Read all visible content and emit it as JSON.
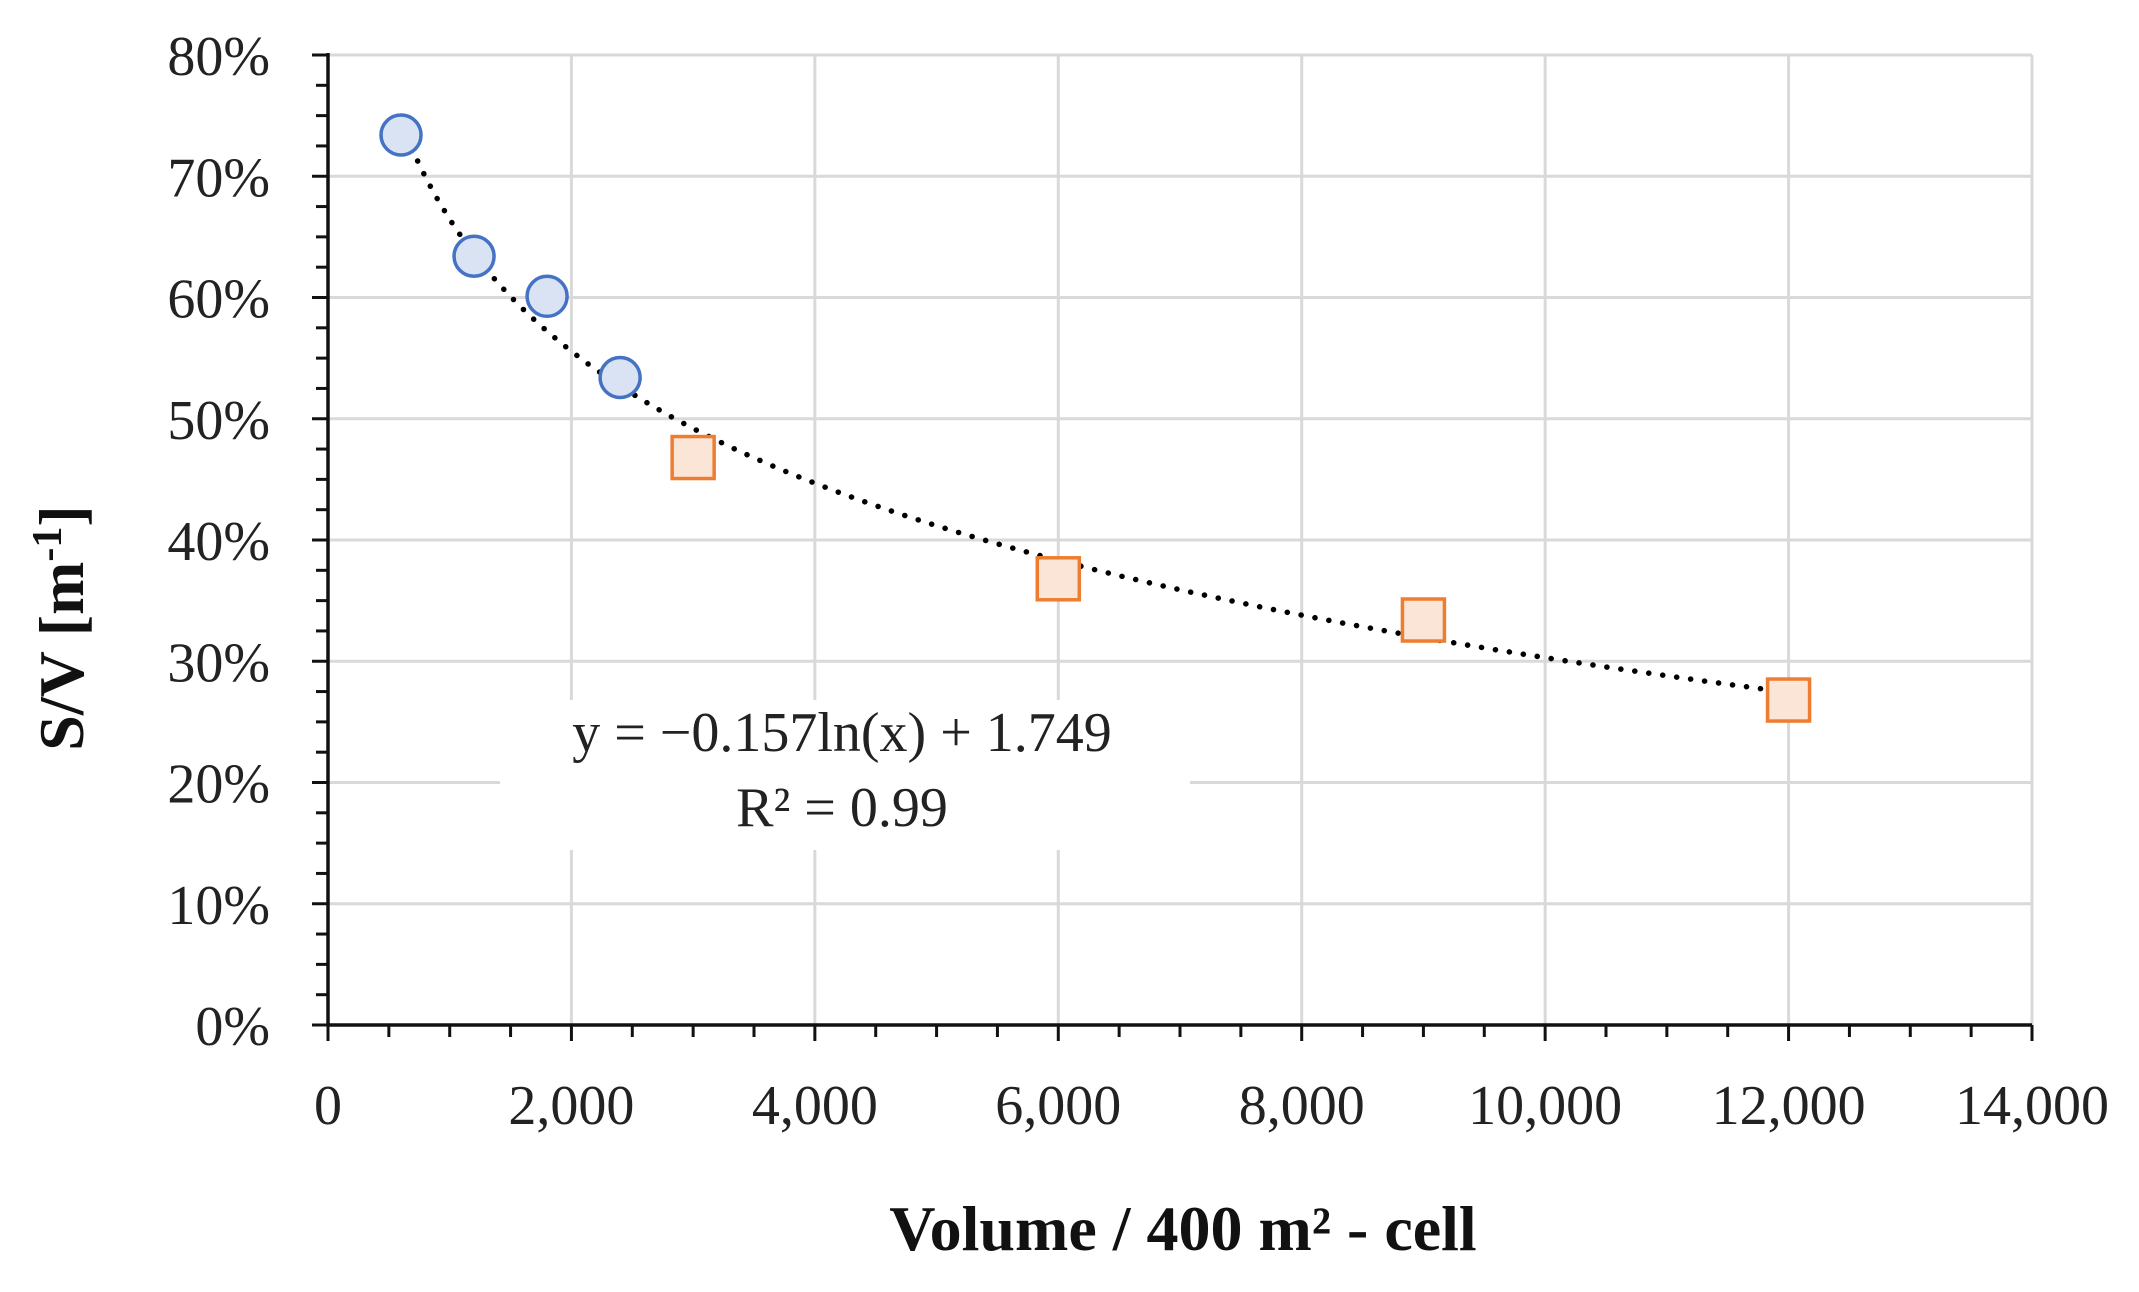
{
  "chart_data": {
    "type": "scatter",
    "title": "",
    "xlabel": "Volume / 400 m² - cell",
    "ylabel_main": "S/V [m",
    "ylabel_sup": "-1",
    "ylabel_close": "]",
    "xlim": [
      0,
      14000
    ],
    "ylim": [
      0,
      0.8
    ],
    "x_ticks": [
      0,
      2000,
      4000,
      6000,
      8000,
      10000,
      12000,
      14000
    ],
    "x_tick_labels": [
      "0",
      "2,000",
      "4,000",
      "6,000",
      "8,000",
      "10,000",
      "12,000",
      "14,000"
    ],
    "y_ticks": [
      0,
      0.1,
      0.2,
      0.3,
      0.4,
      0.5,
      0.6,
      0.7,
      0.8
    ],
    "y_tick_labels": [
      "0%",
      "10%",
      "20%",
      "30%",
      "40%",
      "50%",
      "60%",
      "70%",
      "80%"
    ],
    "grid": true,
    "series": [
      {
        "name": "circles",
        "marker": "circle",
        "color": "#4472c4",
        "fill": "#dae3f3",
        "x": [
          600,
          1200,
          1800,
          2400
        ],
        "y": [
          0.734,
          0.634,
          0.601,
          0.534
        ]
      },
      {
        "name": "squares",
        "marker": "square",
        "color": "#ed7d31",
        "fill": "#fbe5d6",
        "x": [
          3000,
          6000,
          9000,
          12000
        ],
        "y": [
          0.468,
          0.368,
          0.334,
          0.268
        ]
      }
    ],
    "trendline": {
      "type": "logarithmic",
      "a": -0.157,
      "b": 1.749,
      "x_range": [
        600,
        12000
      ],
      "equation": "y = −0.157ln(x) + 1.749",
      "r_squared": "R² = 0.99"
    }
  }
}
